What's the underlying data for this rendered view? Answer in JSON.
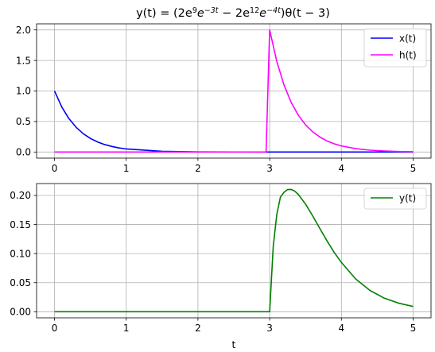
{
  "chart_data": [
    {
      "type": "line",
      "title": "y(t) = (2e^9e^−3t − 2e^12e^−4t)θ(t − 3)",
      "title_parts": {
        "prefix": "y(t) = (2e",
        "sup1": "9",
        "mid1": "e",
        "sup2": "−3t",
        "mid2": " − 2e",
        "sup3": "12",
        "mid3": "e",
        "sup4": "−4t",
        "suffix": ")θ(t − 3)"
      },
      "xlabel": "",
      "ylabel": "",
      "xlim": [
        -0.25,
        5.25
      ],
      "ylim": [
        -0.1,
        2.1
      ],
      "xticks": [
        0,
        1,
        2,
        3,
        4,
        5
      ],
      "xtick_labels": [
        "0",
        "1",
        "2",
        "3",
        "4",
        "5"
      ],
      "yticks": [
        0.0,
        0.5,
        1.0,
        1.5,
        2.0
      ],
      "ytick_labels": [
        "0.0",
        "0.5",
        "1.0",
        "1.5",
        "2.0"
      ],
      "grid": true,
      "legend_position": "top-right",
      "series": [
        {
          "name": "x(t)",
          "color": "#0000ff",
          "x": [
            0,
            0.1,
            0.2,
            0.3,
            0.4,
            0.5,
            0.6,
            0.7,
            0.8,
            0.9,
            1.0,
            1.5,
            2.0,
            2.5,
            3.0,
            3.5,
            4.0,
            4.5,
            5.0
          ],
          "y": [
            1.0,
            0.741,
            0.549,
            0.407,
            0.301,
            0.223,
            0.165,
            0.122,
            0.091,
            0.067,
            0.05,
            0.011,
            0.002,
            0.001,
            0.0,
            0.0,
            0.0,
            0.0,
            0.0
          ]
        },
        {
          "name": "h(t)",
          "color": "#ff00ff",
          "x": [
            0,
            1.0,
            2.0,
            2.95,
            3.0,
            3.1,
            3.2,
            3.3,
            3.4,
            3.5,
            3.6,
            3.7,
            3.8,
            3.9,
            4.0,
            4.2,
            4.4,
            4.6,
            4.8,
            5.0
          ],
          "y": [
            0.0,
            0.0,
            0.0,
            0.0,
            2.0,
            1.482,
            1.098,
            0.813,
            0.602,
            0.446,
            0.331,
            0.245,
            0.181,
            0.134,
            0.1,
            0.055,
            0.03,
            0.017,
            0.009,
            0.005
          ]
        }
      ]
    },
    {
      "type": "line",
      "title": "",
      "xlabel": "t",
      "ylabel": "",
      "xlim": [
        -0.25,
        5.25
      ],
      "ylim": [
        -0.0105,
        0.2205
      ],
      "xticks": [
        0,
        1,
        2,
        3,
        4,
        5
      ],
      "xtick_labels": [
        "0",
        "1",
        "2",
        "3",
        "4",
        "5"
      ],
      "yticks": [
        0.0,
        0.05,
        0.1,
        0.15,
        0.2
      ],
      "ytick_labels": [
        "0.00",
        "0.05",
        "0.10",
        "0.15",
        "0.20"
      ],
      "grid": true,
      "legend_position": "top-right",
      "series": [
        {
          "name": "y(t)",
          "color": "#008000",
          "x": [
            0,
            1.0,
            2.0,
            2.99,
            3.0,
            3.05,
            3.1,
            3.15,
            3.2,
            3.25,
            3.3,
            3.35,
            3.4,
            3.5,
            3.6,
            3.7,
            3.8,
            3.9,
            4.0,
            4.2,
            4.4,
            4.6,
            4.8,
            5.0
          ],
          "y": [
            0.0,
            0.0,
            0.0,
            0.0,
            0.0,
            0.1126,
            0.1677,
            0.1972,
            0.2055,
            0.2102,
            0.2104,
            0.2074,
            0.2017,
            0.1852,
            0.1648,
            0.1431,
            0.1218,
            0.102,
            0.0849,
            0.0563,
            0.0365,
            0.0233,
            0.0147,
            0.0091
          ]
        }
      ]
    }
  ]
}
